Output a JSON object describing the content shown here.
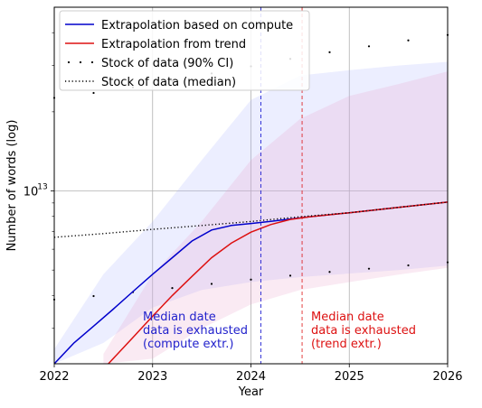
{
  "chart_data": {
    "type": "line",
    "xlabel": "Year",
    "ylabel": "Number of words (log)",
    "xlim": [
      2022,
      2026
    ],
    "ylim": [
      2200000000000.0,
      50000000000000.0
    ],
    "yscale": "log",
    "grid": true,
    "legend_position": "top-left",
    "x_ticks": [
      2022,
      2023,
      2024,
      2025,
      2026
    ],
    "x_tick_labels": [
      "2022",
      "2023",
      "2024",
      "2025",
      "2026"
    ],
    "y_ticks": [
      10000000000000.0
    ],
    "y_tick_labels": [
      "10",
      "13"
    ],
    "series": [
      {
        "name": "Extrapolation based on compute",
        "color": "#0000cc",
        "style": "solid",
        "x": [
          2022.0,
          2022.2,
          2022.4,
          2022.6,
          2022.8,
          2023.0,
          2023.2,
          2023.4,
          2023.6,
          2023.8,
          2024.0,
          2024.2,
          2024.4,
          2024.6,
          2025.0,
          2025.5,
          2026.0
        ],
        "y": [
          2200000000000.0,
          2640000000000.0,
          3060000000000.0,
          3550000000000.0,
          4140000000000.0,
          4820000000000.0,
          5570000000000.0,
          6450000000000.0,
          7100000000000.0,
          7390000000000.0,
          7520000000000.0,
          7660000000000.0,
          7820000000000.0,
          7980000000000.0,
          8260000000000.0,
          8660000000000.0,
          9070000000000.0
        ]
      },
      {
        "name": "Extrapolation from trend",
        "color": "#dd1111",
        "style": "solid",
        "x": [
          2022.55,
          2022.8,
          2023.0,
          2023.2,
          2023.4,
          2023.6,
          2023.8,
          2024.0,
          2024.2,
          2024.4,
          2024.6,
          2025.0,
          2025.5,
          2026.0
        ],
        "y": [
          2200000000000.0,
          2770000000000.0,
          3340000000000.0,
          4000000000000.0,
          4730000000000.0,
          5570000000000.0,
          6330000000000.0,
          6970000000000.0,
          7450000000000.0,
          7790000000000.0,
          7980000000000.0,
          8260000000000.0,
          8660000000000.0,
          9070000000000.0
        ]
      },
      {
        "name": "Stock of data (90% CI)",
        "color": "#000000",
        "style": "sparse-dots",
        "x": [
          2022.0,
          2022.4,
          2022.8,
          2023.2,
          2023.6,
          2024.0,
          2024.4,
          2024.8,
          2025.2,
          2025.6,
          2026.0
        ],
        "y_upper": [
          22600000000000.0,
          23600000000000.0,
          24800000000000.0,
          26200000000000.0,
          28000000000000.0,
          29800000000000.0,
          31800000000000.0,
          33700000000000.0,
          35500000000000.0,
          37400000000000.0,
          39200000000000.0
        ],
        "y_lower": [
          3860000000000.0,
          3980000000000.0,
          4120000000000.0,
          4270000000000.0,
          4430000000000.0,
          4600000000000.0,
          4760000000000.0,
          4920000000000.0,
          5060000000000.0,
          5210000000000.0,
          5350000000000.0
        ]
      },
      {
        "name": "Stock of data (median)",
        "color": "#000000",
        "style": "dotted",
        "x": [
          2022.0,
          2022.5,
          2023.0,
          2023.5,
          2024.0,
          2024.5,
          2025.0,
          2025.5,
          2026.0
        ],
        "y": [
          6660000000000.0,
          6880000000000.0,
          7140000000000.0,
          7390000000000.0,
          7650000000000.0,
          7980000000000.0,
          8260000000000.0,
          8660000000000.0,
          9070000000000.0
        ]
      }
    ],
    "bands": [
      {
        "color": "#aab0ff",
        "opacity": 0.22,
        "x": [
          2022.0,
          2022.5,
          2023.0,
          2023.5,
          2024.0,
          2024.5,
          2025.0,
          2025.5,
          2026.0
        ],
        "y_upper": [
          2500000000000.0,
          4820000000000.0,
          7650000000000.0,
          13100000000000.0,
          22200000000000.0,
          27500000000000.0,
          28800000000000.0,
          30000000000000.0,
          31000000000000.0
        ],
        "y_lower": [
          2200000000000.0,
          2640000000000.0,
          3600000000000.0,
          4200000000000.0,
          4500000000000.0,
          4700000000000.0,
          4850000000000.0,
          5000000000000.0,
          5200000000000.0
        ]
      },
      {
        "color": "#e8a0c8",
        "opacity": 0.22,
        "x": [
          2022.5,
          2023.0,
          2023.5,
          2024.0,
          2024.5,
          2025.0,
          2025.5,
          2026.0
        ],
        "y_upper": [
          2400000000000.0,
          4820000000000.0,
          7650000000000.0,
          13100000000000.0,
          18800000000000.0,
          23000000000000.0,
          25500000000000.0,
          28500000000000.0
        ],
        "y_lower": [
          2200000000000.0,
          2300000000000.0,
          3000000000000.0,
          3700000000000.0,
          4200000000000.0,
          4500000000000.0,
          4800000000000.0,
          5100000000000.0
        ]
      }
    ],
    "vlines": [
      {
        "x": 2024.1,
        "color": "#0000cc",
        "style": "dashed"
      },
      {
        "x": 2024.52,
        "color": "#dd1111",
        "style": "dashed"
      }
    ],
    "annotations": [
      {
        "id": "compute",
        "color": "#2222cc",
        "lines": [
          "Median date",
          "data is exhausted",
          "(compute extr.)"
        ]
      },
      {
        "id": "trend",
        "color": "#dd1111",
        "lines": [
          "Median date",
          "data is exhausted",
          "(trend extr.)"
        ]
      }
    ]
  }
}
